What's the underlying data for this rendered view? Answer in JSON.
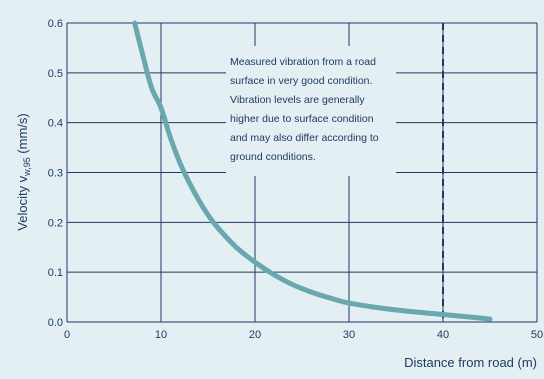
{
  "chart_data": {
    "type": "line",
    "xlabel": "Distance from road (m)",
    "ylabel_prefix": "Velocity v",
    "ylabel_subscript": "w,95",
    "ylabel_suffix": " (mm/s)",
    "xlim": [
      0,
      50
    ],
    "ylim": [
      0,
      0.6
    ],
    "x_ticks": [
      "0",
      "10",
      "20",
      "30",
      "40",
      "50"
    ],
    "y_ticks": [
      "0.0",
      "0.1",
      "0.2",
      "0.3",
      "0.4",
      "0.5",
      "0.6"
    ],
    "grid": true,
    "series": [
      {
        "color": "#69a8ae",
        "points": [
          [
            7.2,
            0.6
          ],
          [
            8,
            0.54
          ],
          [
            9,
            0.47
          ],
          [
            10,
            0.43
          ],
          [
            11,
            0.37
          ],
          [
            12,
            0.32
          ],
          [
            13,
            0.28
          ],
          [
            14,
            0.245
          ],
          [
            15,
            0.215
          ],
          [
            16,
            0.19
          ],
          [
            18,
            0.15
          ],
          [
            20,
            0.12
          ],
          [
            22,
            0.095
          ],
          [
            24,
            0.075
          ],
          [
            26,
            0.06
          ],
          [
            28,
            0.048
          ],
          [
            30,
            0.038
          ],
          [
            33,
            0.029
          ],
          [
            36,
            0.022
          ],
          [
            40,
            0.015
          ],
          [
            45,
            0.006
          ]
        ]
      }
    ],
    "reference_line": {
      "x": 40,
      "style": "dashed",
      "color": "#1f3a63"
    },
    "annotation": {
      "lines": [
        "Measured vibration from a road",
        "surface in very good condition.",
        "Vibration levels are generally",
        "higher due to surface condition",
        "and may also differ according to",
        "ground conditions."
      ]
    },
    "colors": {
      "background": "#e4eff3",
      "grid": "#1f3a63",
      "text": "#1f3a63",
      "curve": "#69a8ae"
    }
  }
}
